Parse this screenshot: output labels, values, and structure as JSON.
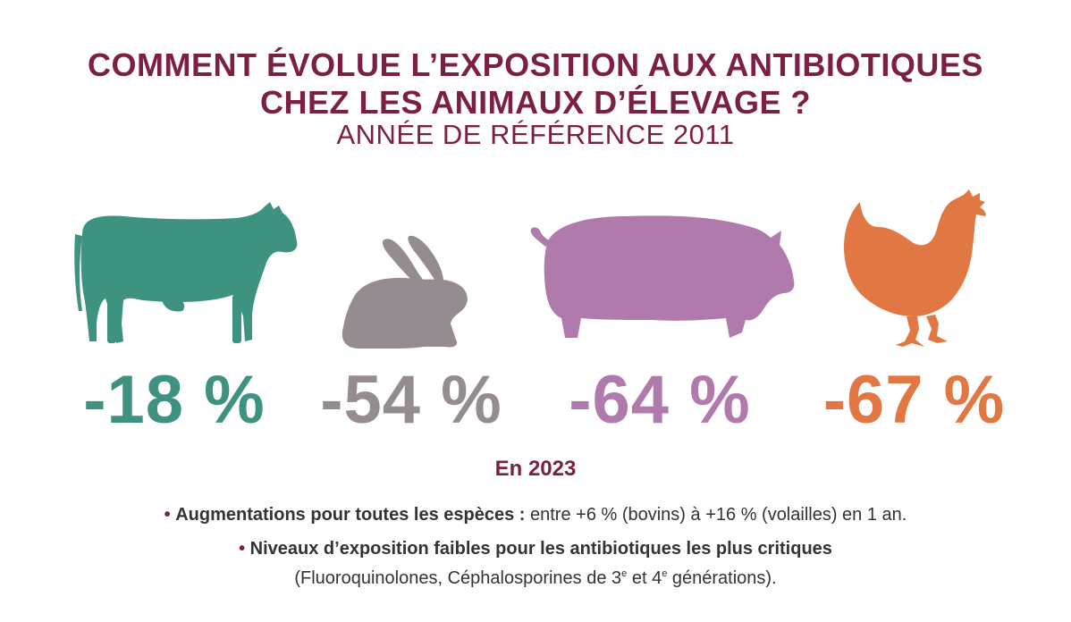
{
  "title_line1": "COMMENT ÉVOLUE L’EXPOSITION AUX ANTIBIOTIQUES",
  "title_line2": "CHEZ LES ANIMAUX D’ÉLEVAGE ?",
  "subtitle": "ANNÉE DE RÉFÉRENCE 2011",
  "colors": {
    "title": "#7b1f45",
    "cow": "#3e9280",
    "rabbit": "#948c91",
    "pig": "#b07aad",
    "chicken": "#e17843"
  },
  "animals": [
    {
      "icon": "cow-icon",
      "value": "-18 %"
    },
    {
      "icon": "rabbit-icon",
      "value": "-54 %"
    },
    {
      "icon": "pig-icon",
      "value": "-64 %"
    },
    {
      "icon": "chicken-icon",
      "value": "-67 %"
    }
  ],
  "section_title": "En 2023",
  "bullets": {
    "b1_bold": "Augmentations pour toutes les espèces :",
    "b1_text": " entre +6 % (bovins) à +16 % (volailles) en 1 an.",
    "b2_bold": "Niveaux d’exposition faibles pour les antibiotiques les plus critiques",
    "b2_text_a": "(Fluoroquinolones, Céphalosporines de 3",
    "b2_sup1": "e",
    "b2_text_b": " et 4",
    "b2_sup2": "e",
    "b2_text_c": " générations)."
  }
}
